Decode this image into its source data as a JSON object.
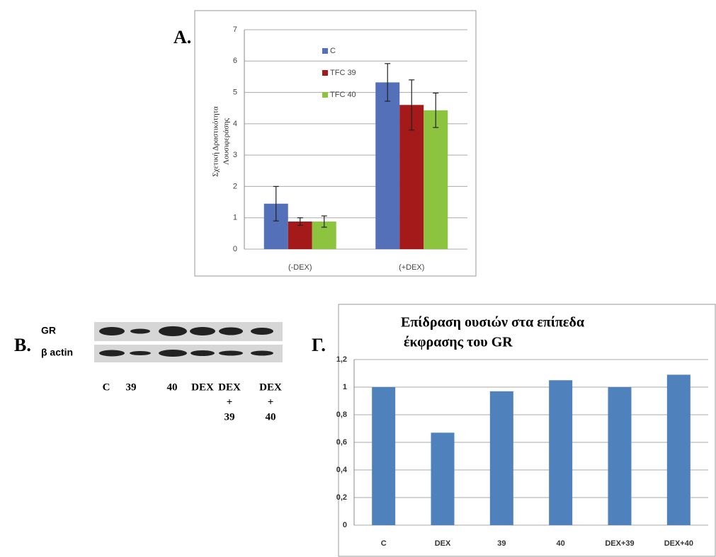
{
  "panels": {
    "a": "A.",
    "b": "B.",
    "c": "Γ."
  },
  "blot": {
    "rows": [
      "GR",
      "β actin"
    ],
    "lanes": [
      [
        "C"
      ],
      [
        "39"
      ],
      [
        "40"
      ],
      [
        "DEX"
      ],
      [
        "DEX",
        "+",
        "39"
      ],
      [
        "DEX",
        "+",
        "40"
      ]
    ]
  },
  "chart_data": [
    {
      "type": "bar",
      "ylabel": [
        "Σχετική Δραστικότητα",
        "Λουσιφεράσης"
      ],
      "categories": [
        "(-DEX)",
        "(+DEX)"
      ],
      "series": [
        {
          "name": "C",
          "color": "#5470b8",
          "values": [
            1.45,
            5.32
          ],
          "errors": [
            0.55,
            0.6
          ]
        },
        {
          "name": "TFC 39",
          "color": "#a41a1a",
          "values": [
            0.88,
            4.6
          ],
          "errors": [
            0.12,
            0.8
          ]
        },
        {
          "name": "TFC 40",
          "color": "#8dc43f",
          "values": [
            0.88,
            4.43
          ],
          "errors": [
            0.18,
            0.55
          ]
        }
      ],
      "ylim": [
        0,
        7
      ],
      "yticks": [
        0,
        1,
        2,
        3,
        4,
        5,
        6,
        7
      ],
      "grid": true,
      "legend": "top-left"
    },
    {
      "type": "bar",
      "title": [
        "Επίδραση ουσιών στα επίπεδα",
        "έκφρασης του GR"
      ],
      "categories": [
        "C",
        "DEX",
        "39",
        "40",
        "DEX+39",
        "DEX+40"
      ],
      "values": [
        1.0,
        0.67,
        0.97,
        1.05,
        1.0,
        1.09
      ],
      "color": "#4f81bd",
      "ylim": [
        0,
        1.2
      ],
      "yticks": [
        0,
        {
          "value": 0.2,
          "label": "0,2"
        },
        {
          "value": 0.4,
          "label": "0,4"
        },
        {
          "value": 0.6,
          "label": "0,6"
        },
        {
          "value": 0.8,
          "label": "0,8"
        },
        1,
        {
          "value": 1.2,
          "label": "1,2"
        }
      ],
      "grid": true
    }
  ]
}
